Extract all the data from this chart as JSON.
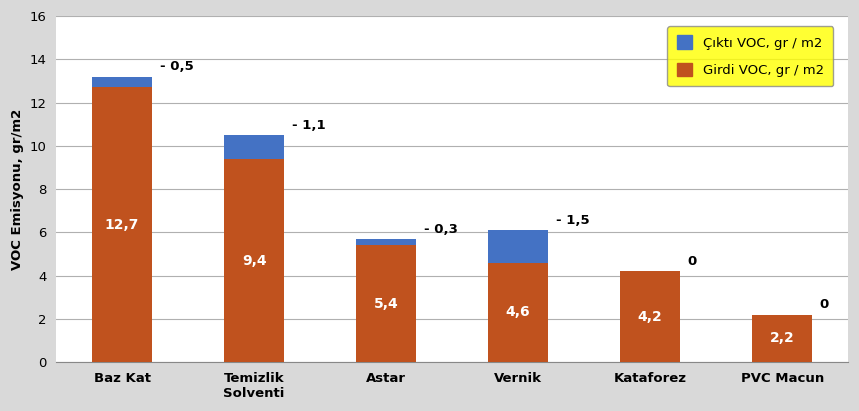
{
  "categories": [
    "Baz Kat",
    "Temizlik\nSolventi",
    "Astar",
    "Vernik",
    "Kataforez",
    "PVC Macun"
  ],
  "girdi_voc": [
    12.7,
    9.4,
    5.4,
    4.6,
    4.2,
    2.2
  ],
  "cikti_voc": [
    0.5,
    1.1,
    0.3,
    1.5,
    0,
    0
  ],
  "emission_labels": [
    "- 0,5",
    "- 1,1",
    "- 0,3",
    "- 1,5",
    "0",
    "0"
  ],
  "girdi_labels": [
    "12,7",
    "9,4",
    "5,4",
    "4,6",
    "4,2",
    "2,2"
  ],
  "orange_color": "#C0521E",
  "blue_color": "#4472C4",
  "ylabel": "VOC Emisyonu, gr/m2",
  "ylim": [
    0,
    16
  ],
  "yticks": [
    0,
    2,
    4,
    6,
    8,
    10,
    12,
    14,
    16
  ],
  "legend_label_cikti": "Çıktı VOC, gr / m2",
  "legend_label_girdi": "Girdi VOC, gr / m2",
  "legend_bg": "#FFFF00",
  "bg_color": "#D9D9D9",
  "plot_bg": "#FFFFFF",
  "gridcolor": "#B0B0B0",
  "bar_width": 0.45,
  "figwidth": 8.59,
  "figheight": 4.11,
  "dpi": 100
}
